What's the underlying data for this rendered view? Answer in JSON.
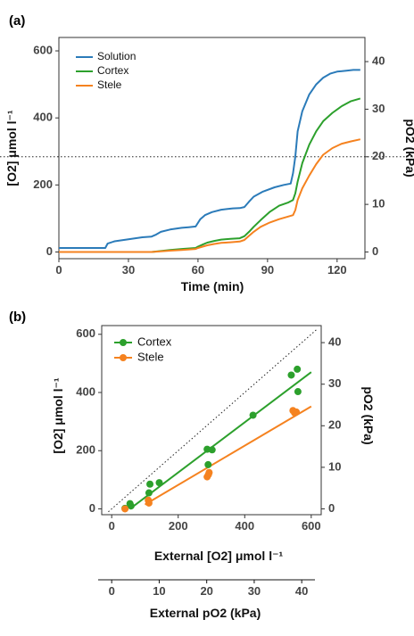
{
  "colors": {
    "solution": "#2b7bb9",
    "cortex": "#2ca02c",
    "stele": "#f5821f"
  },
  "chart_data": [
    {
      "type": "line",
      "panel_label": "(a)",
      "xlabel": "Time (min)",
      "ylabel_left": "[O2] μmol l⁻¹",
      "ylabel_right": "pO2 (kPa)",
      "xlim": [
        0,
        132
      ],
      "ylim": [
        -20,
        640
      ],
      "xticks": [
        0,
        30,
        60,
        90,
        120
      ],
      "yticks_left": [
        0,
        200,
        400,
        600
      ],
      "yticks_right": [
        0,
        10,
        20,
        30,
        40
      ],
      "reference_line_y": 284,
      "legend_position": "top-left",
      "series": [
        {
          "name": "Solution",
          "color_key": "solution",
          "x": [
            0,
            20,
            21,
            24,
            30,
            36,
            40,
            42,
            44,
            48,
            53,
            56,
            59,
            61,
            63,
            66,
            70,
            75,
            78,
            80,
            82,
            84,
            88,
            93,
            97,
            100,
            101,
            102,
            103,
            105,
            108,
            111,
            114,
            117,
            120,
            124,
            127,
            130
          ],
          "y": [
            12,
            12,
            25,
            32,
            38,
            44,
            46,
            52,
            60,
            67,
            72,
            74,
            76,
            98,
            110,
            119,
            126,
            130,
            131,
            134,
            150,
            165,
            180,
            193,
            200,
            204,
            235,
            285,
            360,
            420,
            470,
            500,
            520,
            532,
            538,
            541,
            543,
            543
          ]
        },
        {
          "name": "Cortex",
          "color_key": "cortex",
          "x": [
            0,
            40,
            44,
            48,
            53,
            57,
            59,
            60,
            62,
            64,
            67,
            70,
            74,
            78,
            80,
            82,
            84,
            87,
            91,
            95,
            99,
            101,
            102,
            103,
            105,
            108,
            111,
            114,
            118,
            122,
            126,
            130
          ],
          "y": [
            0,
            0,
            3,
            6,
            9,
            11,
            12,
            16,
            22,
            28,
            33,
            37,
            39,
            41,
            47,
            60,
            75,
            95,
            120,
            138,
            148,
            155,
            175,
            210,
            265,
            320,
            360,
            390,
            415,
            435,
            450,
            458
          ]
        },
        {
          "name": "Stele",
          "color_key": "stele",
          "x": [
            0,
            40,
            44,
            48,
            53,
            57,
            59,
            60,
            62,
            64,
            67,
            70,
            74,
            78,
            80,
            82,
            84,
            87,
            91,
            95,
            99,
            101,
            102,
            103,
            105,
            108,
            111,
            114,
            118,
            122,
            126,
            130
          ],
          "y": [
            0,
            0,
            2,
            4,
            6,
            8,
            9,
            12,
            16,
            20,
            24,
            27,
            29,
            31,
            36,
            48,
            60,
            75,
            88,
            98,
            106,
            110,
            125,
            155,
            190,
            228,
            262,
            290,
            310,
            323,
            330,
            336
          ]
        }
      ]
    },
    {
      "type": "scatter",
      "panel_label": "(b)",
      "xlabel": "External [O2] μmol l⁻¹",
      "xlabel_secondary": "External pO2 (kPa)",
      "ylabel_left": "[O2] μmol l⁻¹",
      "ylabel_right": "pO2 (kPa)",
      "xlim": [
        -30,
        630
      ],
      "ylim": [
        -20,
        630
      ],
      "xticks": [
        0,
        200,
        400,
        600
      ],
      "xticks_secondary": [
        0,
        10,
        20,
        30,
        40
      ],
      "yticks_left": [
        0,
        200,
        400,
        600
      ],
      "yticks_right": [
        0,
        10,
        20,
        30,
        40
      ],
      "identity_line": true,
      "legend_position": "top-left",
      "series": [
        {
          "name": "Cortex",
          "color_key": "cortex",
          "points": [
            [
              40,
              2
            ],
            [
              55,
              18
            ],
            [
              58,
              10
            ],
            [
              112,
              55
            ],
            [
              115,
              85
            ],
            [
              143,
              90
            ],
            [
              287,
              205
            ],
            [
              290,
              152
            ],
            [
              302,
              203
            ],
            [
              425,
              322
            ],
            [
              540,
              460
            ],
            [
              558,
              480
            ],
            [
              560,
              403
            ]
          ],
          "fit": [
            [
              55,
              0
            ],
            [
              600,
              470
            ]
          ]
        },
        {
          "name": "Stele",
          "color_key": "stele",
          "points": [
            [
              40,
              0
            ],
            [
              110,
              30
            ],
            [
              112,
              20
            ],
            [
              287,
              110
            ],
            [
              291,
              118
            ],
            [
              293,
              125
            ],
            [
              545,
              338
            ],
            [
              550,
              330
            ],
            [
              555,
              333
            ]
          ],
          "fit": [
            [
              100,
              15
            ],
            [
              600,
              352
            ]
          ]
        }
      ]
    }
  ]
}
